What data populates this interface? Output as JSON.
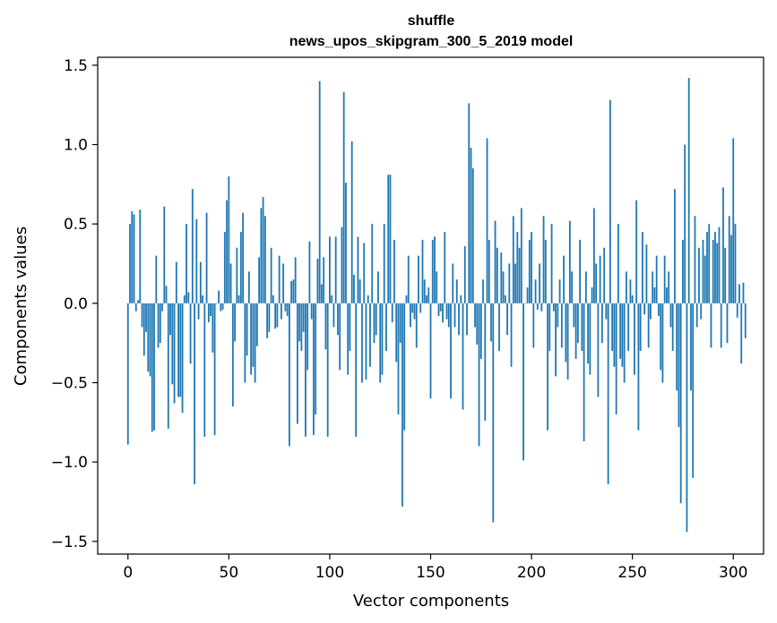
{
  "chart_data": {
    "type": "bar",
    "title": "shuffle",
    "subtitle": "news_upos_skipgram_300_5_2019 model",
    "xlabel": "Vector components",
    "ylabel": "Components values",
    "xlim": [
      -15,
      315
    ],
    "ylim": [
      -1.58,
      1.55
    ],
    "xticks": [
      0,
      50,
      100,
      150,
      200,
      250,
      300
    ],
    "xtick_labels": [
      "0",
      "50",
      "100",
      "150",
      "200",
      "250",
      "300"
    ],
    "yticks": [
      -1.5,
      -1.0,
      -0.5,
      0.0,
      0.5,
      1.0,
      1.5
    ],
    "ytick_labels": [
      "−1.5",
      "−1.0",
      "−0.5",
      "0.0",
      "0.5",
      "1.0",
      "1.5"
    ],
    "color": "#1f77b4",
    "x_start": 0,
    "values": [
      -0.89,
      0.5,
      0.58,
      0.56,
      -0.05,
      0.02,
      0.59,
      -0.15,
      -0.33,
      -0.18,
      -0.43,
      -0.46,
      -0.81,
      -0.8,
      0.3,
      -0.28,
      -0.25,
      -0.05,
      0.61,
      0.11,
      -0.79,
      -0.2,
      -0.51,
      -0.63,
      0.26,
      -0.59,
      -0.59,
      -0.69,
      0.05,
      0.5,
      0.07,
      -0.38,
      0.72,
      -1.14,
      0.53,
      -0.1,
      0.26,
      0.05,
      -0.84,
      0.57,
      -0.12,
      -0.08,
      -0.31,
      -0.83,
      0.0,
      0.08,
      -0.05,
      -0.04,
      0.45,
      0.65,
      0.8,
      0.25,
      -0.65,
      -0.24,
      0.35,
      0.05,
      0.45,
      0.57,
      -0.5,
      -0.33,
      0.2,
      -0.45,
      -0.4,
      -0.5,
      -0.27,
      0.29,
      0.6,
      0.67,
      0.55,
      -0.22,
      -0.18,
      0.35,
      0.05,
      -0.16,
      -0.15,
      0.3,
      -0.1,
      0.25,
      -0.05,
      -0.08,
      -0.9,
      0.14,
      0.15,
      0.29,
      -0.76,
      -0.24,
      -0.3,
      -0.18,
      -0.84,
      -0.42,
      0.39,
      -0.1,
      -0.83,
      -0.7,
      0.28,
      1.4,
      0.12,
      0.29,
      -0.29,
      -0.84,
      0.42,
      0.05,
      -0.15,
      0.42,
      -0.2,
      -0.42,
      0.48,
      1.33,
      0.76,
      -0.45,
      -0.3,
      1.02,
      0.18,
      -0.84,
      0.42,
      0.15,
      -0.5,
      0.38,
      -0.48,
      0.05,
      -0.4,
      0.5,
      -0.25,
      -0.2,
      0.2,
      -0.5,
      -0.45,
      0.5,
      -0.3,
      0.81,
      0.81,
      -0.12,
      0.4,
      -0.37,
      -0.7,
      -0.25,
      -1.28,
      -0.8,
      0.05,
      0.3,
      -0.15,
      -0.06,
      -0.1,
      -0.28,
      0.3,
      -0.06,
      0.4,
      0.15,
      0.05,
      0.1,
      -0.6,
      0.4,
      0.42,
      0.2,
      -0.08,
      -0.05,
      -0.12,
      0.45,
      -0.1,
      -0.15,
      -0.6,
      0.25,
      -0.15,
      0.15,
      -0.2,
      0.05,
      -0.67,
      0.36,
      -0.2,
      1.26,
      0.98,
      0.85,
      -0.15,
      -0.26,
      -0.9,
      -0.35,
      0.15,
      -0.74,
      1.04,
      0.4,
      -0.24,
      -1.38,
      0.52,
      0.35,
      -0.3,
      0.32,
      0.2,
      0.05,
      -0.2,
      0.25,
      -0.4,
      0.55,
      0.25,
      0.45,
      0.35,
      0.6,
      -0.99,
      0.0,
      0.1,
      0.4,
      0.45,
      -0.28,
      0.15,
      -0.04,
      0.25,
      -0.05,
      0.55,
      0.4,
      -0.8,
      -0.3,
      0.5,
      -0.05,
      -0.46,
      -0.15,
      0.15,
      -0.28,
      0.3,
      -0.37,
      -0.48,
      0.52,
      0.2,
      -0.15,
      -0.35,
      -0.25,
      0.4,
      -0.3,
      -0.87,
      0.2,
      -0.38,
      -0.45,
      0.1,
      0.6,
      0.25,
      -0.59,
      0.3,
      -0.25,
      0.35,
      -0.1,
      -1.14,
      1.28,
      -0.3,
      -0.4,
      -0.7,
      0.5,
      -0.35,
      -0.4,
      -0.5,
      0.2,
      -0.3,
      0.15,
      0.05,
      -0.45,
      0.65,
      -0.8,
      -0.3,
      0.45,
      -0.07,
      0.37,
      -0.28,
      -0.1,
      0.2,
      0.1,
      0.3,
      -0.08,
      -0.42,
      -0.5,
      0.3,
      0.1,
      0.2,
      -0.15,
      -0.3,
      0.72,
      -0.55,
      -0.78,
      -1.26,
      0.4,
      1.0,
      -1.44,
      1.42,
      -0.55,
      -1.1,
      0.55,
      -0.15,
      0.35,
      -0.1,
      0.4,
      0.3,
      0.45,
      0.5,
      -0.28,
      0.4,
      0.45,
      0.38,
      0.48,
      -0.28,
      0.73,
      0.35,
      -0.25,
      0.55,
      0.43,
      1.04,
      0.5,
      -0.09,
      0.12,
      -0.38,
      0.13,
      -0.22
    ]
  }
}
